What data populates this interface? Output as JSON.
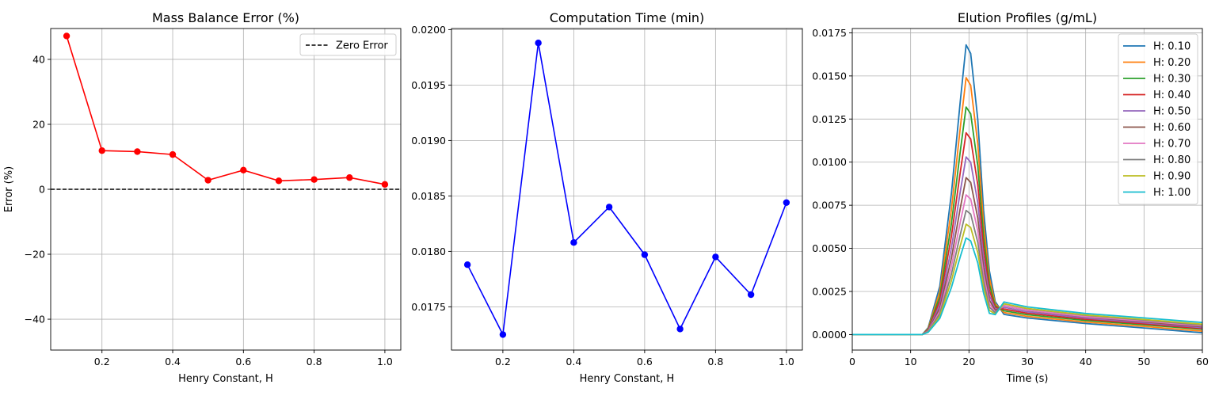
{
  "chart_data": [
    {
      "type": "line",
      "title": "Mass Balance Error (%)",
      "xlabel": "Henry Constant, H",
      "ylabel": "Error (%)",
      "xlim": [
        0.055,
        1.045
      ],
      "ylim": [
        -49.5,
        49.5
      ],
      "xticks": [
        0.2,
        0.4,
        0.6,
        0.8,
        1.0
      ],
      "xtick_labels": [
        "0.2",
        "0.4",
        "0.6",
        "0.8",
        "1.0"
      ],
      "yticks": [
        -40,
        -20,
        0,
        20,
        40
      ],
      "ytick_labels": [
        "−40",
        "−20",
        "0",
        "20",
        "40"
      ],
      "grid": true,
      "legend_position": "upper-right",
      "series": [
        {
          "color": "#ff0000",
          "marker": "circle",
          "x": [
            0.1,
            0.2,
            0.3,
            0.4,
            0.5,
            0.6,
            0.7,
            0.8,
            0.9,
            1.0
          ],
          "y": [
            47.2,
            11.9,
            11.6,
            10.7,
            2.8,
            5.9,
            2.6,
            3.0,
            3.6,
            1.5
          ]
        }
      ],
      "reference_lines": [
        {
          "name": "Zero Error",
          "y": 0,
          "color": "#000000",
          "style": "dashed"
        }
      ]
    },
    {
      "type": "line",
      "title": "Computation Time (min)",
      "xlabel": "Henry Constant, H",
      "ylabel": "",
      "xlim": [
        0.055,
        1.045
      ],
      "ylim": [
        0.01711,
        0.02001
      ],
      "xticks": [
        0.2,
        0.4,
        0.6,
        0.8,
        1.0
      ],
      "xtick_labels": [
        "0.2",
        "0.4",
        "0.6",
        "0.8",
        "1.0"
      ],
      "yticks": [
        0.0175,
        0.018,
        0.0185,
        0.019,
        0.0195,
        0.02
      ],
      "ytick_labels": [
        "0.0175",
        "0.0180",
        "0.0185",
        "0.0190",
        "0.0195",
        "0.0200"
      ],
      "grid": true,
      "series": [
        {
          "color": "#0000ff",
          "marker": "circle",
          "x": [
            0.1,
            0.2,
            0.3,
            0.4,
            0.5,
            0.6,
            0.7,
            0.8,
            0.9,
            1.0
          ],
          "y": [
            0.01788,
            0.01725,
            0.01988,
            0.01808,
            0.0184,
            0.01797,
            0.0173,
            0.01795,
            0.01761,
            0.01844
          ]
        }
      ]
    },
    {
      "type": "line",
      "title": "Elution Profiles (g/mL)",
      "xlabel": "Time (s)",
      "ylabel": "",
      "xlim": [
        0,
        60
      ],
      "ylim": [
        -0.0009,
        0.01775
      ],
      "xticks": [
        0,
        10,
        20,
        30,
        40,
        50,
        60
      ],
      "xtick_labels": [
        "0",
        "10",
        "20",
        "30",
        "40",
        "50",
        "60"
      ],
      "yticks": [
        0,
        0.0025,
        0.005,
        0.0075,
        0.01,
        0.0125,
        0.015,
        0.0175
      ],
      "ytick_labels": [
        "0.0000",
        "0.0025",
        "0.0050",
        "0.0075",
        "0.0100",
        "0.0125",
        "0.0150",
        "0.0175"
      ],
      "grid": true,
      "legend_position": "upper-right",
      "shape_points": [
        [
          0,
          0
        ],
        [
          12,
          0
        ],
        [
          13,
          0.0004
        ],
        [
          15,
          0.0028
        ],
        [
          17,
          0.0082
        ],
        [
          18.5,
          0.0135
        ],
        [
          19.5,
          0.0168
        ],
        [
          20.3,
          0.0163
        ],
        [
          21.5,
          0.0125
        ],
        [
          22.5,
          0.0072
        ],
        [
          23.5,
          0.0037
        ],
        [
          24.5,
          0.002
        ],
        [
          26,
          0.00145
        ],
        [
          30,
          0.00125
        ],
        [
          40,
          0.001
        ],
        [
          50,
          0.00085
        ],
        [
          60,
          0.0007
        ]
      ],
      "series": [
        {
          "name": "H: 0.10",
          "color": "#1f77b4",
          "peak": 0.0168,
          "tail_at_25s": 0.0012,
          "tail_at_60s": 0.0001
        },
        {
          "name": "H: 0.20",
          "color": "#ff7f0e",
          "peak": 0.0149,
          "tail_at_25s": 0.0013,
          "tail_at_60s": 0.0002
        },
        {
          "name": "H: 0.30",
          "color": "#2ca02c",
          "peak": 0.0132,
          "tail_at_25s": 0.0014,
          "tail_at_60s": 0.0003
        },
        {
          "name": "H: 0.40",
          "color": "#d62728",
          "peak": 0.0117,
          "tail_at_25s": 0.0015,
          "tail_at_60s": 0.00035
        },
        {
          "name": "H: 0.50",
          "color": "#9467bd",
          "peak": 0.0103,
          "tail_at_25s": 0.0016,
          "tail_at_60s": 0.0004
        },
        {
          "name": "H: 0.60",
          "color": "#8c564b",
          "peak": 0.0091,
          "tail_at_25s": 0.0017,
          "tail_at_60s": 0.00045
        },
        {
          "name": "H: 0.70",
          "color": "#e377c2",
          "peak": 0.0081,
          "tail_at_25s": 0.0017,
          "tail_at_60s": 0.0005
        },
        {
          "name": "H: 0.80",
          "color": "#7f7f7f",
          "peak": 0.0072,
          "tail_at_25s": 0.0018,
          "tail_at_60s": 0.00055
        },
        {
          "name": "H: 0.90",
          "color": "#bcbd22",
          "peak": 0.0064,
          "tail_at_25s": 0.0018,
          "tail_at_60s": 0.0006
        },
        {
          "name": "H: 1.00",
          "color": "#17becf",
          "peak": 0.0056,
          "tail_at_25s": 0.0019,
          "tail_at_60s": 0.0007
        }
      ]
    }
  ]
}
